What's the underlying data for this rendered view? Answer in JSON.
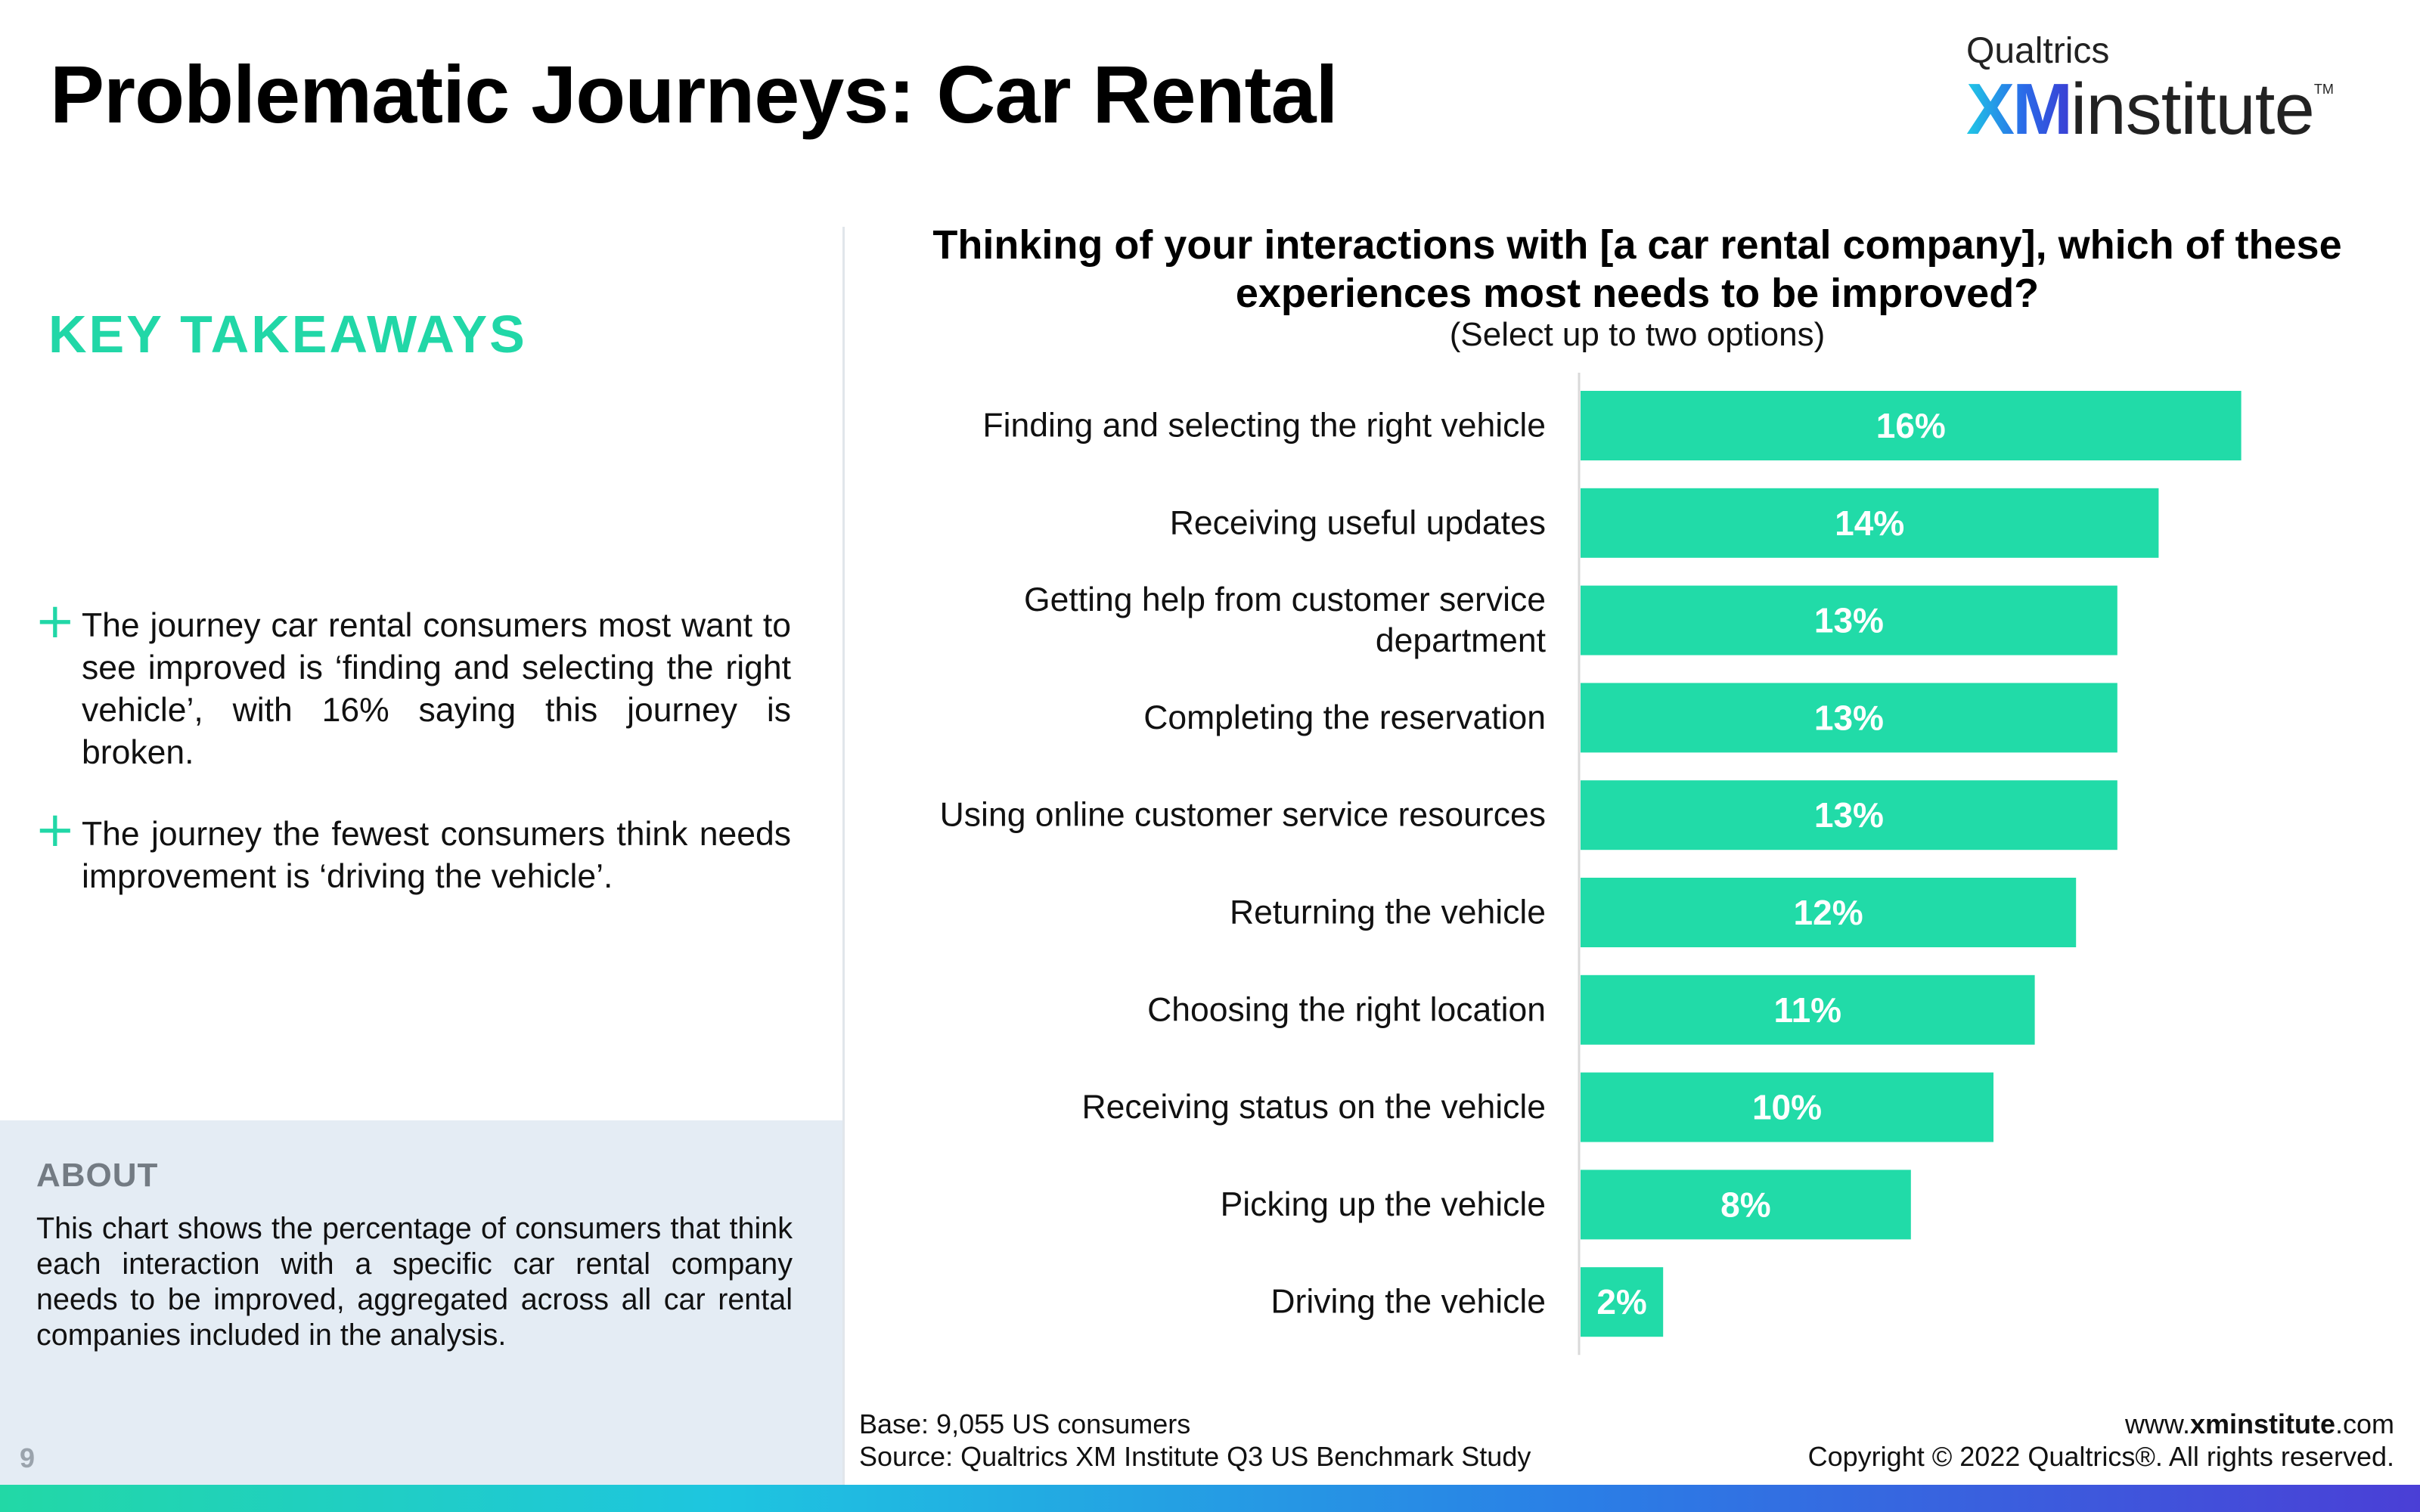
{
  "page": {
    "title": "Problematic Journeys: Car Rental",
    "number": "9"
  },
  "logo": {
    "top": "Qualtrics",
    "xm": "XM",
    "rest": "institute",
    "tm": "TM"
  },
  "takeaways": {
    "heading": "KEY TAKEAWAYS",
    "items": [
      "The journey car rental consumers most want to see improved is ‘finding and selecting the right vehicle’, with 16% saying this journey is broken.",
      "The journey the fewest consumers think needs improvement is ‘driving the vehicle’."
    ]
  },
  "about": {
    "heading": "ABOUT",
    "text": "This chart shows the percentage of consumers that think each interaction with a specific car rental company needs to be improved, aggregated across all car rental companies included in the analysis."
  },
  "footer": {
    "base": "Base: 9,055 US consumers",
    "source": "Source: Qualtrics XM Institute Q3 US Benchmark Study",
    "url_prefix": "www.",
    "url_bold": "xminstitute",
    "url_suffix": ".com",
    "copyright": "Copyright © 2022 Qualtrics®. All rights reserved."
  },
  "colors": {
    "accent": "#21d7a7",
    "bar": "#21dba8",
    "axis": "#d9d9d9"
  },
  "chart_data": {
    "type": "bar",
    "orientation": "horizontal",
    "title": "Thinking of your interactions with [a car rental company], which of these experiences most needs to be improved?",
    "subtitle": "(Select up to two options)",
    "categories": [
      [
        "Finding and selecting the right vehicle"
      ],
      [
        "Receiving useful updates"
      ],
      [
        "Getting help from customer service",
        "department"
      ],
      [
        "Completing the reservation"
      ],
      [
        "Using online customer service resources"
      ],
      [
        "Returning the vehicle"
      ],
      [
        "Choosing the right location"
      ],
      [
        "Receiving status on the vehicle"
      ],
      [
        "Picking up the vehicle"
      ],
      [
        "Driving the vehicle"
      ]
    ],
    "values": [
      16,
      14,
      13,
      13,
      13,
      12,
      11,
      10,
      8,
      2
    ],
    "value_labels": [
      "16%",
      "14%",
      "13%",
      "13%",
      "13%",
      "12%",
      "11%",
      "10%",
      "8%",
      "2%"
    ],
    "xlim": [
      0,
      20
    ],
    "grid": false,
    "legend": "none"
  }
}
